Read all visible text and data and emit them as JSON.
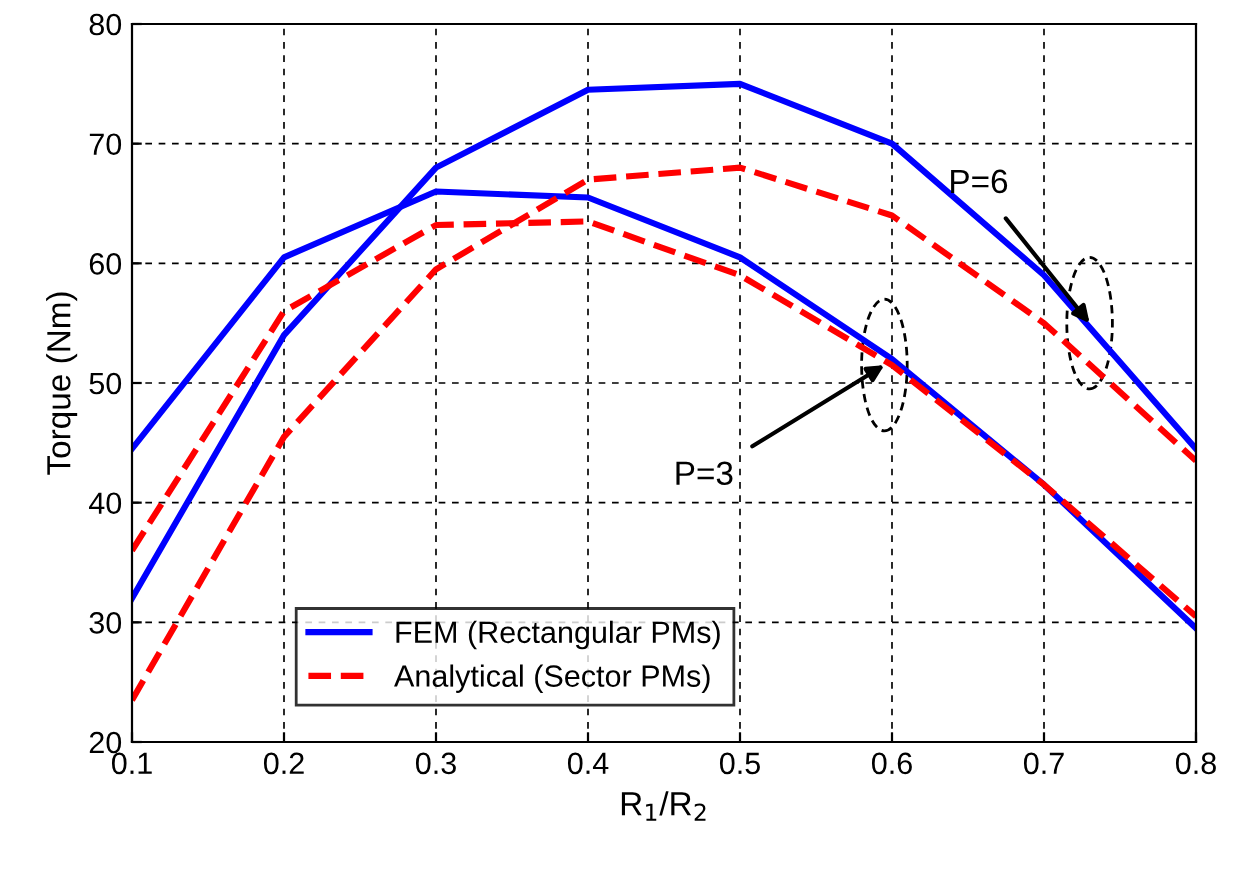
{
  "chart_data": {
    "type": "line",
    "xlabel": "R$_{1}$/R$_{2}$",
    "ylabel": "Torque (Nm)",
    "x": [
      0.1,
      0.2,
      0.3,
      0.4,
      0.5,
      0.6,
      0.7,
      0.8
    ],
    "series": [
      {
        "name": "FEM (Rectangular PMs)",
        "color": "#0000ff",
        "line_style": "solid",
        "values": [
          44.5,
          60.5,
          66,
          65.5,
          60.5,
          52,
          41.5,
          29.5
        ]
      },
      {
        "color": "#0000ff",
        "line_style": "solid",
        "values": [
          32,
          54,
          68,
          74.5,
          75,
          70,
          59,
          44.5
        ]
      },
      {
        "name": "Analytical (Sector PMs)",
        "color": "#ff0000",
        "line_style": "dashed",
        "values": [
          36,
          56,
          63.2,
          63.5,
          59,
          51.5,
          41.5,
          30.5
        ]
      },
      {
        "color": "#ff0000",
        "line_style": "dashed",
        "values": [
          23.5,
          45.5,
          59.5,
          67,
          68,
          64,
          55,
          43.5
        ]
      }
    ],
    "xlim": [
      0.1,
      0.8
    ],
    "xticks": [
      0.1,
      0.2,
      0.3,
      0.4,
      0.5,
      0.6,
      0.7,
      0.8
    ],
    "ylim": [
      20,
      80
    ],
    "yticks": [
      20,
      30,
      40,
      50,
      60,
      70,
      80
    ],
    "grid": true,
    "legend": "bottom",
    "annotations": [
      {
        "text": "P=3",
        "x": 0.595,
        "y": 51.5
      },
      {
        "text": "P=6",
        "x": 0.73,
        "y": 55
      }
    ]
  }
}
